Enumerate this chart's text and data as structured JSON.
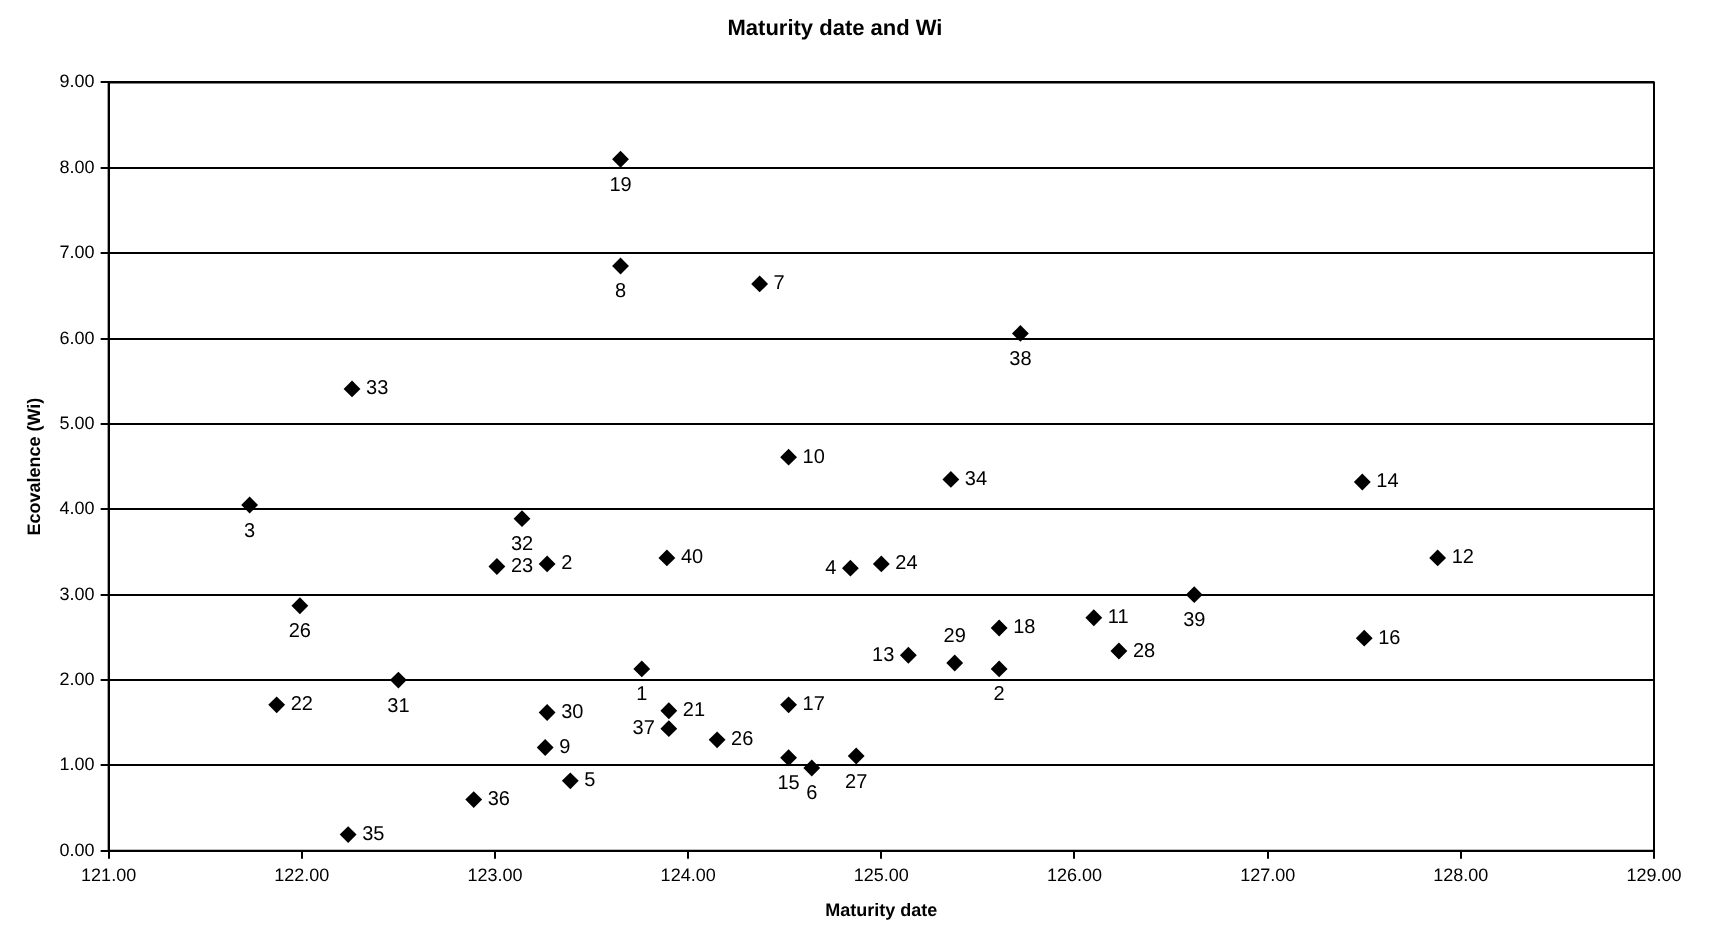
{
  "chart_data": {
    "type": "scatter",
    "title": "Maturity date and Wi",
    "xlabel": "Maturity date",
    "ylabel": "Ecovalence (Wi)",
    "x": [
      123.65,
      123.65,
      122.26,
      121.73,
      123.14,
      123.01,
      123.27,
      121.99,
      121.87,
      122.5,
      123.27,
      123.26,
      123.39,
      122.89,
      122.24,
      123.76,
      124.37,
      125.72,
      124.52,
      125.36,
      123.89,
      124.84,
      125.0,
      125.61,
      126.1,
      126.23,
      125.14,
      125.38,
      125.61,
      123.9,
      123.9,
      124.52,
      124.15,
      124.52,
      124.64,
      124.87,
      127.49,
      126.62,
      127.88,
      127.5
    ],
    "series": [
      {
        "color": "#000000",
        "values": [
          8.1,
          6.85,
          5.41,
          4.05,
          3.89,
          3.33,
          3.36,
          2.87,
          1.71,
          2.0,
          1.62,
          1.21,
          0.82,
          0.6,
          0.19,
          2.13,
          6.64,
          6.06,
          4.61,
          4.35,
          3.43,
          3.31,
          3.36,
          2.61,
          2.73,
          2.34,
          2.29,
          2.2,
          2.13,
          1.64,
          1.43,
          1.71,
          1.3,
          1.09,
          0.97,
          1.11,
          4.32,
          3.0,
          3.43,
          2.49
        ]
      }
    ],
    "annotations": [
      {
        "text": "19",
        "x": 123.65,
        "y": 8.1
      },
      {
        "text": "8",
        "x": 123.65,
        "y": 6.85
      },
      {
        "text": "33",
        "x": 122.26,
        "y": 5.41
      },
      {
        "text": "3",
        "x": 121.73,
        "y": 4.05
      },
      {
        "text": "32",
        "x": 123.14,
        "y": 3.89
      },
      {
        "text": "23",
        "x": 123.01,
        "y": 3.33
      },
      {
        "text": "2",
        "x": 123.27,
        "y": 3.36
      },
      {
        "text": "26",
        "x": 121.99,
        "y": 2.87
      },
      {
        "text": "22",
        "x": 121.87,
        "y": 1.71
      },
      {
        "text": "31",
        "x": 122.5,
        "y": 2.0
      },
      {
        "text": "30",
        "x": 123.27,
        "y": 1.62
      },
      {
        "text": "9",
        "x": 123.26,
        "y": 1.21
      },
      {
        "text": "5",
        "x": 123.39,
        "y": 0.82
      },
      {
        "text": "36",
        "x": 122.89,
        "y": 0.6
      },
      {
        "text": "35",
        "x": 122.24,
        "y": 0.19
      },
      {
        "text": "1",
        "x": 123.76,
        "y": 2.13
      },
      {
        "text": "7",
        "x": 124.37,
        "y": 6.64
      },
      {
        "text": "38",
        "x": 125.72,
        "y": 6.06
      },
      {
        "text": "10",
        "x": 124.52,
        "y": 4.61
      },
      {
        "text": "34",
        "x": 125.36,
        "y": 4.35
      },
      {
        "text": "40",
        "x": 123.89,
        "y": 3.43
      },
      {
        "text": "4",
        "x": 124.84,
        "y": 3.31
      },
      {
        "text": "24",
        "x": 125.0,
        "y": 3.36
      },
      {
        "text": "18",
        "x": 125.61,
        "y": 2.61
      },
      {
        "text": "11",
        "x": 126.1,
        "y": 2.73
      },
      {
        "text": "28",
        "x": 126.23,
        "y": 2.34
      },
      {
        "text": "13",
        "x": 125.14,
        "y": 2.29
      },
      {
        "text": "29",
        "x": 125.38,
        "y": 2.2
      },
      {
        "text": "2",
        "x": 125.61,
        "y": 2.13
      },
      {
        "text": "21",
        "x": 123.9,
        "y": 1.64
      },
      {
        "text": "37",
        "x": 123.9,
        "y": 1.43
      },
      {
        "text": "17",
        "x": 124.52,
        "y": 1.71
      },
      {
        "text": "26",
        "x": 124.15,
        "y": 1.3
      },
      {
        "text": "15",
        "x": 124.52,
        "y": 1.09
      },
      {
        "text": "6",
        "x": 124.64,
        "y": 0.97
      },
      {
        "text": "27",
        "x": 124.87,
        "y": 1.11
      },
      {
        "text": "14",
        "x": 127.49,
        "y": 4.32
      },
      {
        "text": "39",
        "x": 126.62,
        "y": 3.0
      },
      {
        "text": "12",
        "x": 127.88,
        "y": 3.43
      },
      {
        "text": "16",
        "x": 127.5,
        "y": 2.49
      }
    ],
    "xlim": [
      121,
      129
    ],
    "ylim": [
      0,
      9
    ],
    "xticks": [
      {
        "value": 121,
        "label": "121.00"
      },
      {
        "value": 122,
        "label": "122.00"
      },
      {
        "value": 123,
        "label": "123.00"
      },
      {
        "value": 124,
        "label": "124.00"
      },
      {
        "value": 125,
        "label": "125.00"
      },
      {
        "value": 126,
        "label": "126.00"
      },
      {
        "value": 127,
        "label": "127.00"
      },
      {
        "value": 128,
        "label": "128.00"
      },
      {
        "value": 129,
        "label": "129.00"
      }
    ],
    "yticks": [
      {
        "value": 0,
        "label": "0.00"
      },
      {
        "value": 1,
        "label": "1.00"
      },
      {
        "value": 2,
        "label": "2.00"
      },
      {
        "value": 3,
        "label": "3.00"
      },
      {
        "value": 4,
        "label": "4.00"
      },
      {
        "value": 5,
        "label": "5.00"
      },
      {
        "value": 6,
        "label": "6.00"
      },
      {
        "value": 7,
        "label": "7.00"
      },
      {
        "value": 8,
        "label": "8.00"
      },
      {
        "value": 9,
        "label": "9.00"
      }
    ],
    "grid": "y",
    "legend": false,
    "marker": "diamond"
  }
}
